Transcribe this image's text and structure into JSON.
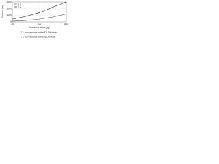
{
  "chart_data": {
    "type": "line",
    "xlabel": "Ammonia leaks (kg)",
    "ylabel": "Distance (m)",
    "x": [
      10,
      30,
      100,
      300,
      1000
    ],
    "series": [
      {
        "name": "Z 1",
        "color": "#555555",
        "values": [
          100,
          200,
          400,
          700,
          1200
        ]
      },
      {
        "name": "Z 2",
        "color": "#111111",
        "values": [
          400,
          800,
          1400,
          2200,
          3000
        ]
      }
    ],
    "xlim": [
      10,
      1000
    ],
    "xticks": [
      10,
      100,
      1000
    ],
    "xscale": "log",
    "ylim": [
      0,
      3000
    ],
    "yticks": [
      0,
      1000,
      2000,
      3000
    ],
    "grid": true,
    "legend": "upper-left",
    "notes": [
      "Z 1 corresponds to the TL 1% dose",
      "Z 2 corresponds to the IDLH dose"
    ]
  }
}
